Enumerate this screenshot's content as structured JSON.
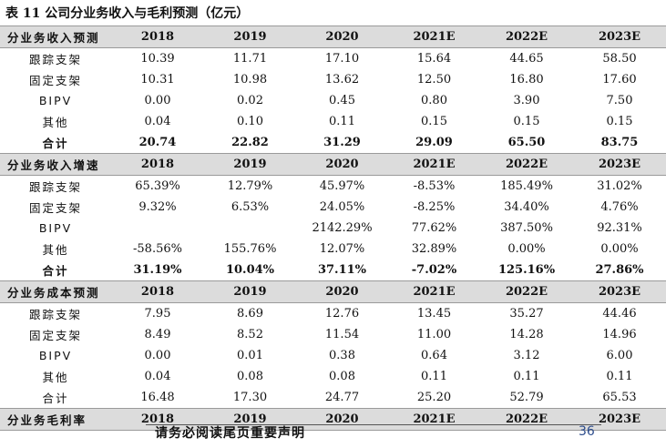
{
  "caption": "表 11 公司分业务收入与毛利预测（亿元）",
  "table": {
    "sections": [
      {
        "title": "分业务收入预测",
        "years": [
          "2018",
          "2019",
          "2020",
          "2021E",
          "2022E",
          "2023E"
        ],
        "rows": [
          {
            "label": "跟踪支架",
            "bold": false,
            "values": [
              "10.39",
              "11.71",
              "17.10",
              "15.64",
              "44.65",
              "58.50"
            ]
          },
          {
            "label": "固定支架",
            "bold": false,
            "values": [
              "10.31",
              "10.98",
              "13.62",
              "12.50",
              "16.80",
              "17.60"
            ]
          },
          {
            "label": "BIPV",
            "bold": false,
            "values": [
              "0.00",
              "0.02",
              "0.45",
              "0.80",
              "3.90",
              "7.50"
            ]
          },
          {
            "label": "其他",
            "bold": false,
            "values": [
              "0.04",
              "0.10",
              "0.11",
              "0.15",
              "0.15",
              "0.15"
            ]
          },
          {
            "label": "合计",
            "bold": true,
            "values": [
              "20.74",
              "22.82",
              "31.29",
              "29.09",
              "65.50",
              "83.75"
            ]
          }
        ]
      },
      {
        "title": "分业务收入增速",
        "years": [
          "2018",
          "2019",
          "2020",
          "2021E",
          "2022E",
          "2023E"
        ],
        "rows": [
          {
            "label": "跟踪支架",
            "bold": false,
            "values": [
              "65.39%",
              "12.79%",
              "45.97%",
              "-8.53%",
              "185.49%",
              "31.02%"
            ]
          },
          {
            "label": "固定支架",
            "bold": false,
            "values": [
              "9.32%",
              "6.53%",
              "24.05%",
              "-8.25%",
              "34.40%",
              "4.76%"
            ]
          },
          {
            "label": "BIPV",
            "bold": false,
            "values": [
              "",
              "",
              "2142.29%",
              "77.62%",
              "387.50%",
              "92.31%"
            ]
          },
          {
            "label": "其他",
            "bold": false,
            "values": [
              "-58.56%",
              "155.76%",
              "12.07%",
              "32.89%",
              "0.00%",
              "0.00%"
            ]
          },
          {
            "label": "合计",
            "bold": true,
            "values": [
              "31.19%",
              "10.04%",
              "37.11%",
              "-7.02%",
              "125.16%",
              "27.86%"
            ]
          }
        ]
      },
      {
        "title": "分业务成本预测",
        "years": [
          "2018",
          "2019",
          "2020",
          "2021E",
          "2022E",
          "2023E"
        ],
        "rows": [
          {
            "label": "跟踪支架",
            "bold": false,
            "values": [
              "7.95",
              "8.69",
              "12.76",
              "13.45",
              "35.27",
              "44.46"
            ]
          },
          {
            "label": "固定支架",
            "bold": false,
            "values": [
              "8.49",
              "8.52",
              "11.54",
              "11.00",
              "14.28",
              "14.96"
            ]
          },
          {
            "label": "BIPV",
            "bold": false,
            "values": [
              "0.00",
              "0.01",
              "0.38",
              "0.64",
              "3.12",
              "6.00"
            ]
          },
          {
            "label": "其他",
            "bold": false,
            "values": [
              "0.04",
              "0.08",
              "0.08",
              "0.11",
              "0.11",
              "0.11"
            ]
          },
          {
            "label": "合计",
            "bold": false,
            "values": [
              "16.48",
              "17.30",
              "24.77",
              "25.20",
              "52.79",
              "65.53"
            ]
          }
        ]
      },
      {
        "title": "分业务毛利率",
        "years": [
          "2018",
          "2019",
          "2020",
          "2021E",
          "2022E",
          "2023E"
        ],
        "rows": []
      }
    ]
  },
  "footer": {
    "disclaimer": "请务必阅读尾页重要声明",
    "page_number": "36"
  }
}
